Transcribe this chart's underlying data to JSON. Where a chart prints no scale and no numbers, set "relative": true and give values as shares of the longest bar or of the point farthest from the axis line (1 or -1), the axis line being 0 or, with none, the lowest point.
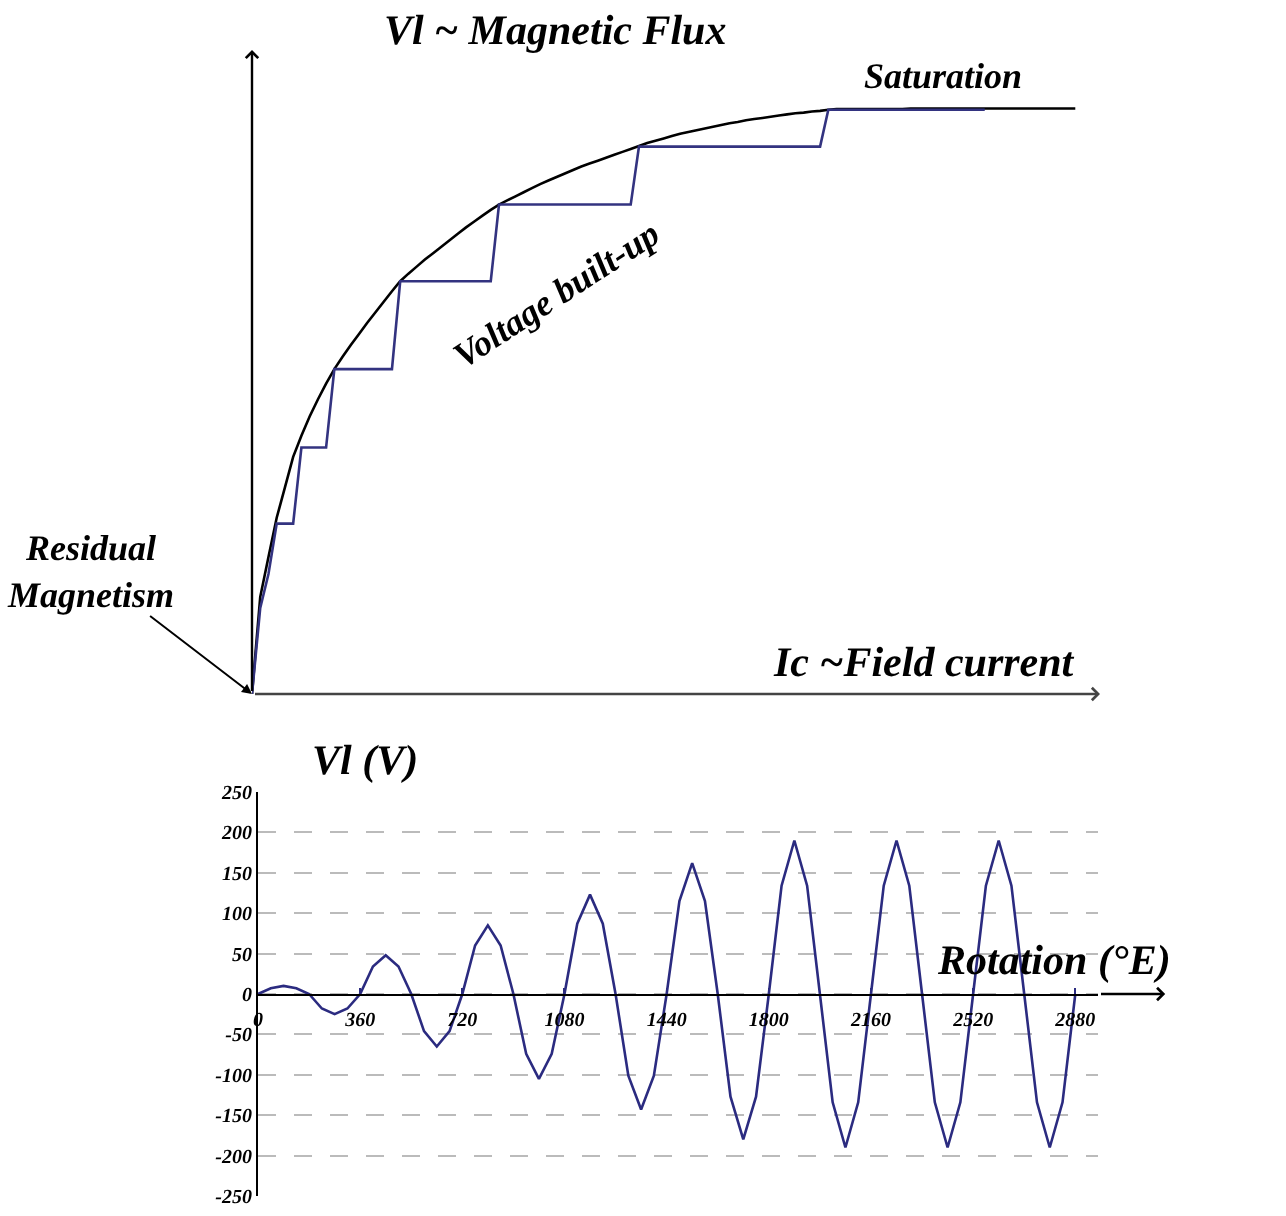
{
  "chart_data": [
    {
      "type": "line",
      "relative": true,
      "ylabel": "Vl ~ Magnetic Flux",
      "xlabel": "Ic ~Field current",
      "categories": [
        null,
        null,
        null,
        null,
        null,
        null,
        null,
        null,
        null,
        null,
        null,
        null,
        null,
        null,
        null,
        null,
        null,
        null,
        null,
        null,
        null,
        null,
        null,
        null,
        null,
        null,
        null,
        null,
        null,
        null,
        null,
        null,
        null,
        null,
        null,
        null,
        null,
        null,
        null,
        null,
        null,
        null,
        null,
        null,
        null,
        null,
        null,
        null,
        null,
        null,
        null,
        null,
        null,
        null,
        null,
        null,
        null,
        null,
        null,
        null,
        null,
        null,
        null,
        null,
        null,
        null,
        null,
        null,
        null,
        null,
        null,
        null,
        null,
        null,
        null,
        null,
        null,
        null,
        null,
        null,
        null,
        null,
        null,
        null,
        null,
        null,
        null,
        null,
        null,
        null,
        null,
        null,
        null,
        null,
        null,
        null,
        null,
        null,
        null,
        null,
        null
      ],
      "series": [
        {
          "color": "#000000",
          "values": [
            0,
            0.166,
            0.234,
            0.301,
            0.353,
            0.405,
            0.441,
            0.474,
            0.503,
            0.53,
            0.555,
            0.576,
            0.596,
            0.615,
            0.634,
            0.652,
            0.67,
            0.688,
            0.705,
            0.718,
            0.73,
            0.742,
            0.753,
            0.764,
            0.775,
            0.786,
            0.797,
            0.807,
            0.817,
            0.827,
            0.836,
            0.843,
            0.85,
            0.857,
            0.864,
            0.871,
            0.877,
            0.883,
            0.889,
            0.895,
            0.901,
            0.906,
            0.911,
            0.916,
            0.921,
            0.926,
            0.931,
            0.936,
            0.941,
            0.945,
            0.949,
            0.953,
            0.957,
            0.96,
            0.963,
            0.966,
            0.969,
            0.972,
            0.975,
            0.977,
            0.98,
            0.982,
            0.984,
            0.986,
            0.988,
            0.99,
            0.992,
            0.993,
            0.995,
            0.996,
            0.998,
            0.999,
            0.999,
            0.999,
            0.999,
            0.999,
            0.999,
            0.999,
            0.999,
            0.999,
            1,
            1,
            1,
            1,
            1,
            1,
            1,
            1,
            1,
            1,
            1,
            1,
            1,
            1,
            1,
            1,
            1,
            1,
            1,
            1,
            1
          ]
        },
        {
          "color": "#333380",
          "values": [
            0,
            0.147,
            0.205,
            0.291,
            0.291,
            0.291,
            0.421,
            0.421,
            0.421,
            0.421,
            0.555,
            0.555,
            0.555,
            0.555,
            0.555,
            0.555,
            0.555,
            0.555,
            0.705,
            0.705,
            0.705,
            0.705,
            0.705,
            0.705,
            0.705,
            0.705,
            0.705,
            0.705,
            0.705,
            0.705,
            0.836,
            0.836,
            0.836,
            0.836,
            0.836,
            0.836,
            0.836,
            0.836,
            0.836,
            0.836,
            0.836,
            0.836,
            0.836,
            0.836,
            0.836,
            0.836,
            0.836,
            0.935,
            0.935,
            0.935,
            0.935,
            0.935,
            0.935,
            0.935,
            0.935,
            0.935,
            0.935,
            0.935,
            0.935,
            0.935,
            0.935,
            0.935,
            0.935,
            0.935,
            0.935,
            0.935,
            0.935,
            0.935,
            0.935,
            0.935,
            0.998,
            0.998,
            0.998,
            0.998,
            0.998,
            0.998,
            0.998,
            0.998,
            0.998,
            0.998,
            0.998,
            0.998,
            0.998,
            0.998,
            0.998,
            0.998,
            0.998,
            0.998,
            0.998,
            0.998,
            null,
            null,
            null,
            null,
            null,
            null,
            null,
            null,
            null,
            null,
            null
          ]
        }
      ],
      "annotations": [
        "Saturation",
        "Voltage built-up",
        "Residual\nMagnetism"
      ]
    },
    {
      "type": "line",
      "ylabel": "Vl (V)",
      "xlabel": "Rotation (°E)",
      "grid": "y",
      "color": "#2b2b80",
      "x": [
        0,
        45,
        90,
        135,
        180,
        225,
        270,
        315,
        360,
        405,
        450,
        495,
        540,
        585,
        630,
        675,
        720,
        765,
        810,
        855,
        900,
        945,
        990,
        1035,
        1080,
        1125,
        1170,
        1215,
        1260,
        1305,
        1350,
        1395,
        1440,
        1485,
        1530,
        1575,
        1620,
        1665,
        1710,
        1755,
        1800,
        1845,
        1890,
        1935,
        1980,
        2025,
        2070,
        2115,
        2160,
        2205,
        2250,
        2295,
        2340,
        2385,
        2430,
        2475,
        2520,
        2565,
        2610,
        2655,
        2700,
        2745,
        2790,
        2835,
        2880
      ],
      "values": [
        0,
        7,
        10,
        7,
        0,
        -18,
        -25,
        -18,
        0,
        34,
        48,
        34,
        0,
        -46,
        -65,
        -46,
        0,
        60,
        85,
        60,
        0,
        -74,
        -105,
        -74,
        0,
        87,
        123,
        87,
        0,
        -101,
        -143,
        -101,
        0,
        115,
        162,
        115,
        0,
        -127,
        -180,
        -127,
        0,
        134,
        190,
        134,
        0,
        -134,
        -190,
        -134,
        0,
        134,
        190,
        134,
        0,
        -134,
        -190,
        -134,
        0,
        134,
        190,
        134,
        0,
        -134,
        -190,
        -134,
        0
      ],
      "xlim": [
        0,
        2960
      ],
      "ylim": [
        -250,
        250
      ],
      "xticks": [
        0,
        360,
        720,
        1080,
        1440,
        1800,
        2160,
        2520,
        2880
      ],
      "yticks": [
        -250,
        -200,
        -150,
        -100,
        -50,
        0,
        50,
        100,
        150,
        200,
        250
      ]
    }
  ]
}
